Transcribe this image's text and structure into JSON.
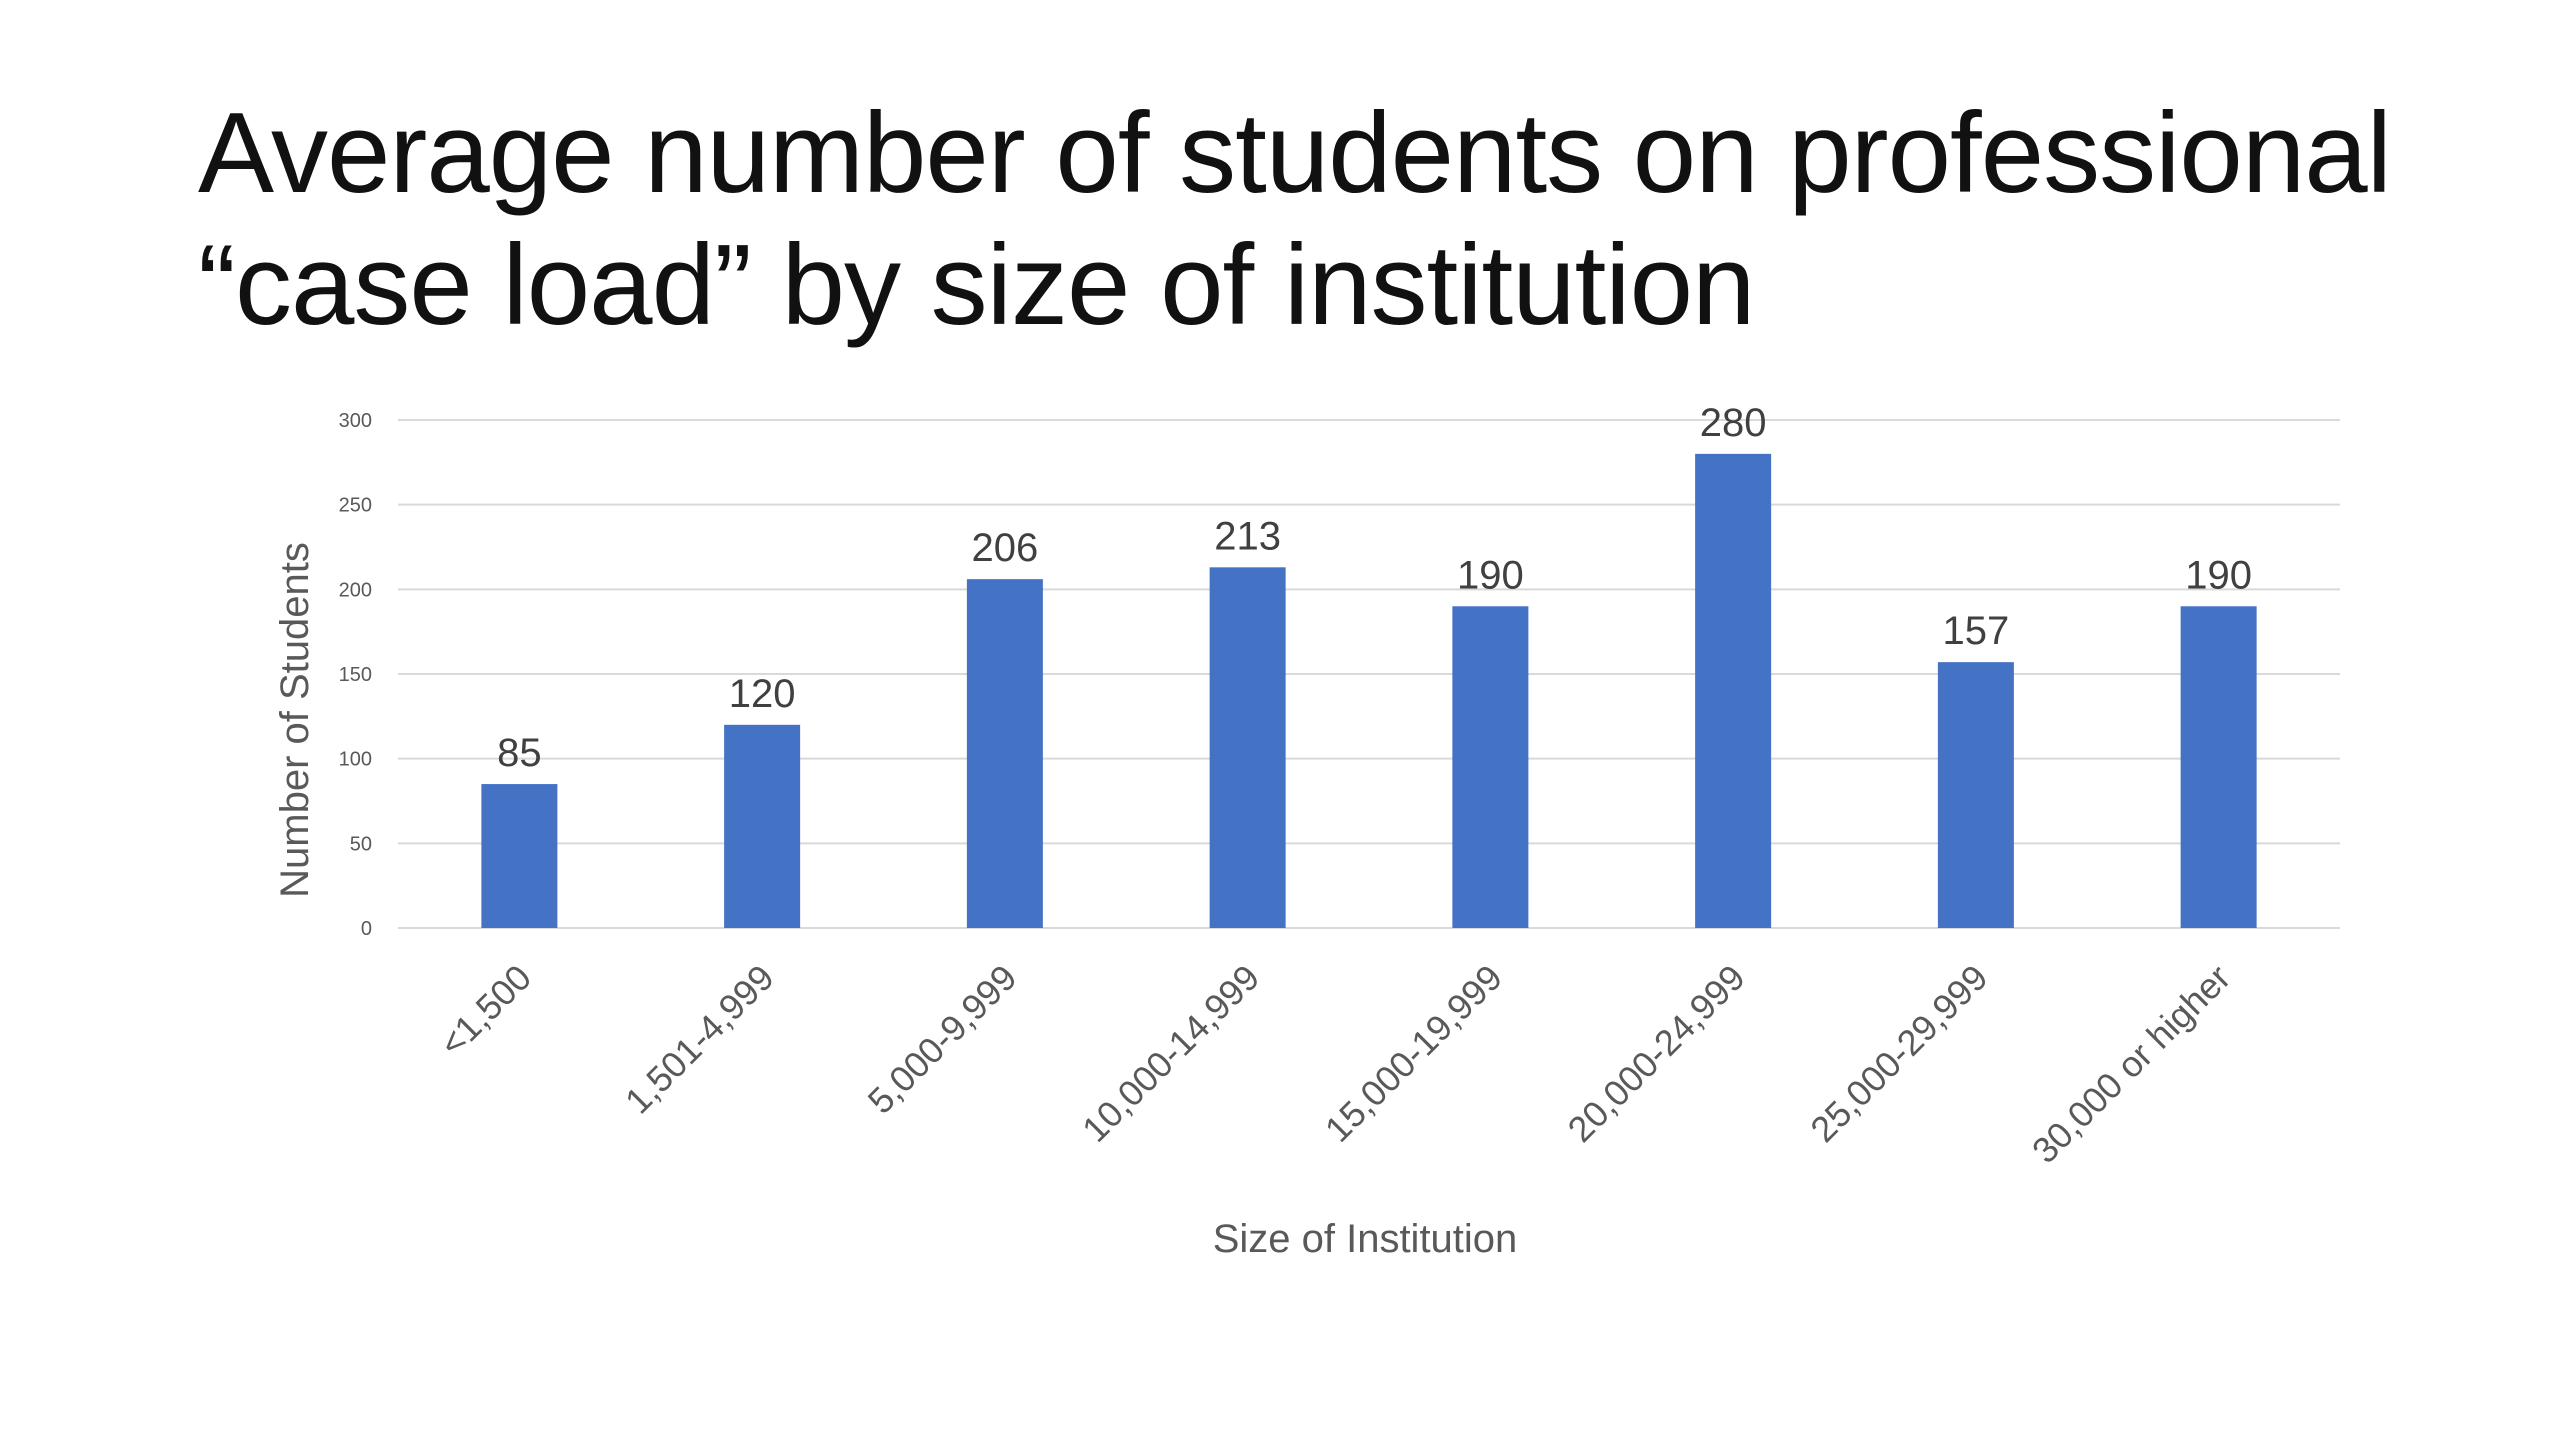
{
  "slide": {
    "title_line1": "Average number of students on professional",
    "title_line2": "“case load”  by size of institution"
  },
  "colors": {
    "bar": "#4472C4",
    "gridline": "#D9D9D9",
    "axis_text": "#595959",
    "data_label": "#404040",
    "title_text": "#111111"
  },
  "chart_data": {
    "type": "bar",
    "title": "",
    "xlabel": "Size of Institution",
    "ylabel": "Number of Students",
    "categories": [
      "<1,500",
      "1,501-4,999",
      "5,000-9,999",
      "10,000-14,999",
      "15,000-19,999",
      "20,000-24,999",
      "25,000-29,999",
      "30,000 or higher"
    ],
    "values": [
      85,
      120,
      206,
      213,
      190,
      280,
      157,
      190
    ],
    "data_labels": [
      "85",
      "120",
      "206",
      "213",
      "190",
      "280",
      "157",
      "190"
    ],
    "ylim": [
      0,
      300
    ],
    "yticks": [
      0,
      50,
      100,
      150,
      200,
      250,
      300
    ],
    "ytick_labels": [
      "0",
      "50",
      "100",
      "150",
      "200",
      "250",
      "300"
    ],
    "grid": true,
    "legend": "none"
  }
}
